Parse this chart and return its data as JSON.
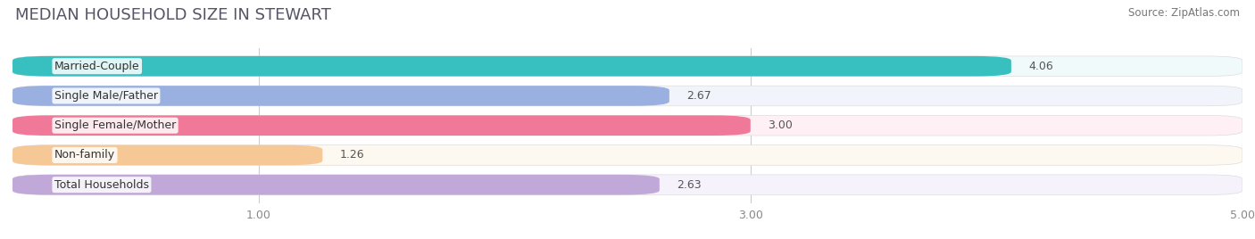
{
  "title": "MEDIAN HOUSEHOLD SIZE IN STEWART",
  "source": "Source: ZipAtlas.com",
  "categories": [
    "Married-Couple",
    "Single Male/Father",
    "Single Female/Mother",
    "Non-family",
    "Total Households"
  ],
  "values": [
    4.06,
    2.67,
    3.0,
    1.26,
    2.63
  ],
  "bar_colors": [
    "#38bfc0",
    "#9ab0e0",
    "#f07898",
    "#f5c896",
    "#c0a8d8"
  ],
  "bar_bg_colors": [
    "#f0fafa",
    "#f2f4fc",
    "#fef0f4",
    "#fdf8f0",
    "#f6f2fc"
  ],
  "accent_colors": [
    "#38bfc0",
    "#9ab0e0",
    "#f07898",
    "#f5c896",
    "#c0a8d8"
  ],
  "xlim": [
    0,
    5.0
  ],
  "xticks": [
    1.0,
    3.0,
    5.0
  ],
  "xticklabels": [
    "1.00",
    "3.00",
    "5.00"
  ],
  "title_fontsize": 13,
  "label_fontsize": 9,
  "value_fontsize": 9,
  "source_fontsize": 8.5,
  "background_color": "#ffffff"
}
